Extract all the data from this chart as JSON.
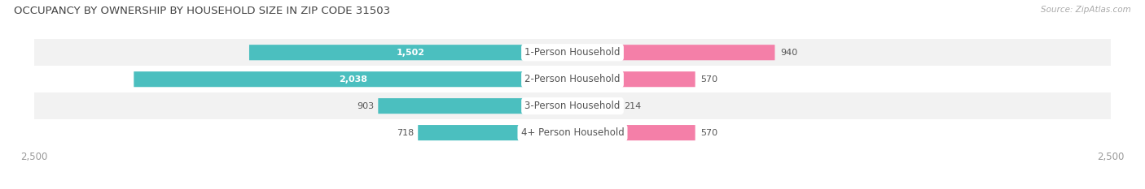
{
  "title": "OCCUPANCY BY OWNERSHIP BY HOUSEHOLD SIZE IN ZIP CODE 31503",
  "source": "Source: ZipAtlas.com",
  "categories": [
    "1-Person Household",
    "2-Person Household",
    "3-Person Household",
    "4+ Person Household"
  ],
  "owner_values": [
    1502,
    2038,
    903,
    718
  ],
  "renter_values": [
    940,
    570,
    214,
    570
  ],
  "owner_color": "#4BBFBF",
  "renter_color": "#F47FA8",
  "background_color": "#FFFFFF",
  "xlim": 2500,
  "title_fontsize": 9.5,
  "source_fontsize": 7.5,
  "label_fontsize": 8.5,
  "value_fontsize": 8,
  "tick_fontsize": 8.5,
  "bar_height": 0.58,
  "row_bg_colors": [
    "#F2F2F2",
    "#FFFFFF",
    "#F2F2F2",
    "#FFFFFF"
  ],
  "label_color": "#555555",
  "tick_color": "#999999",
  "source_color": "#AAAAAA"
}
